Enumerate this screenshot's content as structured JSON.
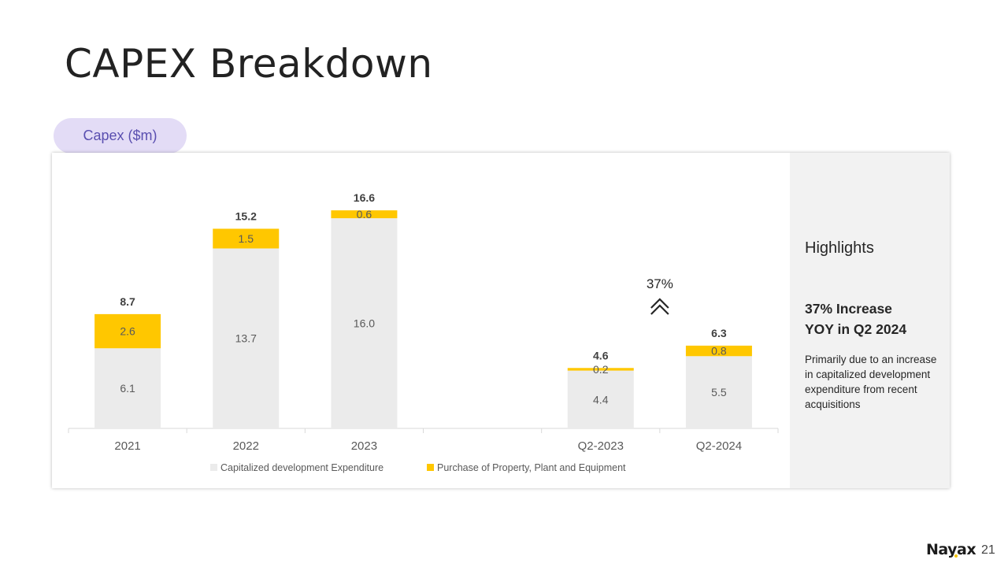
{
  "title": "CAPEX Breakdown",
  "badge": "Capex ($m)",
  "highlights": {
    "heading": "Highlights",
    "stat_line1": "37% Increase",
    "stat_line2": "YOY in Q2 2024",
    "description": "Primarily due to an increase in capitalized development expenditure from recent acquisitions"
  },
  "footer": {
    "logo": "Nayax",
    "page_number": "21"
  },
  "colors": {
    "capitalized": "#ebebeb",
    "ppe": "#ffc700",
    "badge_bg": "#e3dcf6",
    "badge_text": "#5a4fb0"
  },
  "chart_data": {
    "type": "bar",
    "stacked": true,
    "categories": [
      "2021",
      "2022",
      "2023",
      "",
      "Q2-2023",
      "Q2-2024"
    ],
    "series": [
      {
        "name": "Capitalized development Expenditure",
        "values": [
          6.1,
          13.7,
          16.0,
          null,
          4.4,
          5.5
        ],
        "labels": [
          "6.1",
          "13.7",
          "16.0",
          "",
          "4.4",
          "5.5"
        ]
      },
      {
        "name": "Purchase of Property, Plant and Equipment",
        "values": [
          2.6,
          1.5,
          0.6,
          null,
          0.2,
          0.8
        ],
        "labels": [
          "2.6",
          "1.5",
          "0.6",
          "",
          "0.2",
          "0.8"
        ]
      }
    ],
    "totals": [
      8.7,
      15.2,
      16.6,
      null,
      4.6,
      6.3
    ],
    "total_labels": [
      "8.7",
      "15.2",
      "16.6",
      "",
      "4.6",
      "6.3"
    ],
    "annotation": {
      "text": "37%",
      "icon": "double-chevron-up-icon"
    },
    "ylim": [
      0,
      18
    ],
    "legend_position": "bottom",
    "grid": false
  }
}
